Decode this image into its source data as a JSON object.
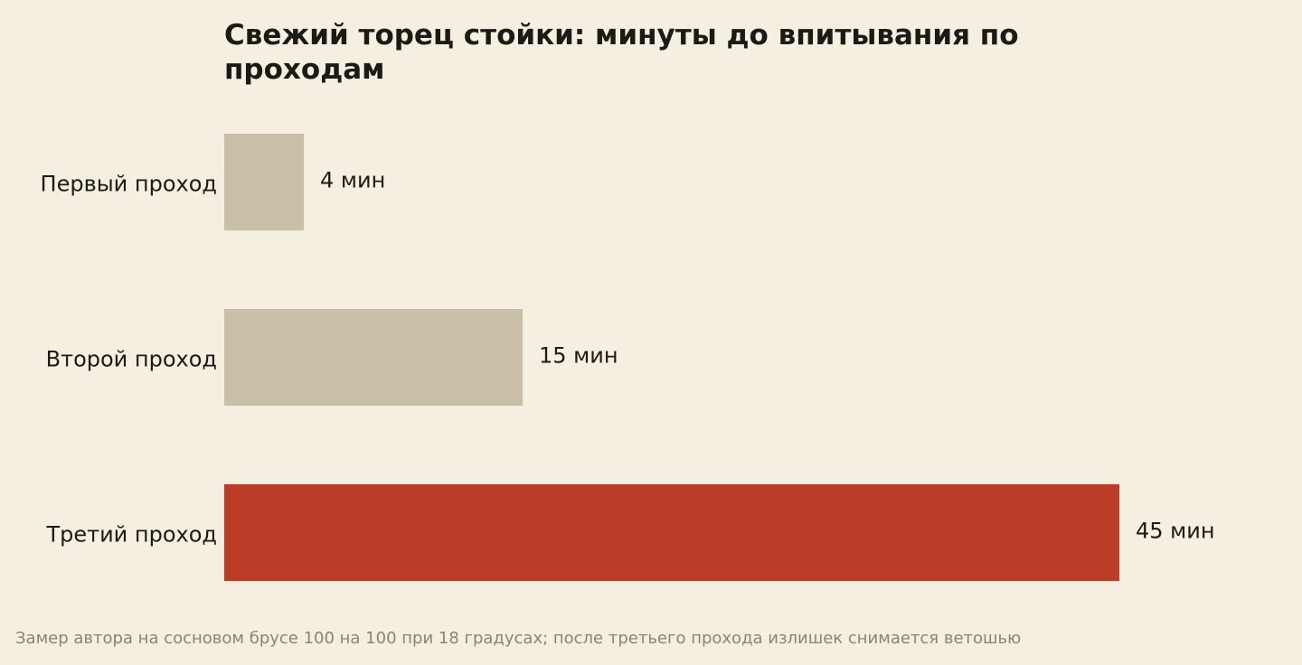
{
  "chart_data": {
    "type": "bar",
    "orientation": "horizontal",
    "title": "Свежий торец стойки: минуты до впитывания по проходам",
    "categories": [
      "Первый проход",
      "Второй проход",
      "Третий проход"
    ],
    "values": [
      4,
      15,
      45
    ],
    "value_labels": [
      "4 мин",
      "15 мин",
      "45 мин"
    ],
    "unit": "мин",
    "xlim": [
      0,
      45
    ],
    "xlabel": "",
    "ylabel": "",
    "grid": false,
    "colors": [
      "#c9bfa7",
      "#c9bfa7",
      "#bc3d27"
    ],
    "highlight_index": 2
  },
  "footnote": "Замер автора на сосновом брусе 100 на 100 при 18 градусах; после третьего прохода излишек снимается ветошью"
}
